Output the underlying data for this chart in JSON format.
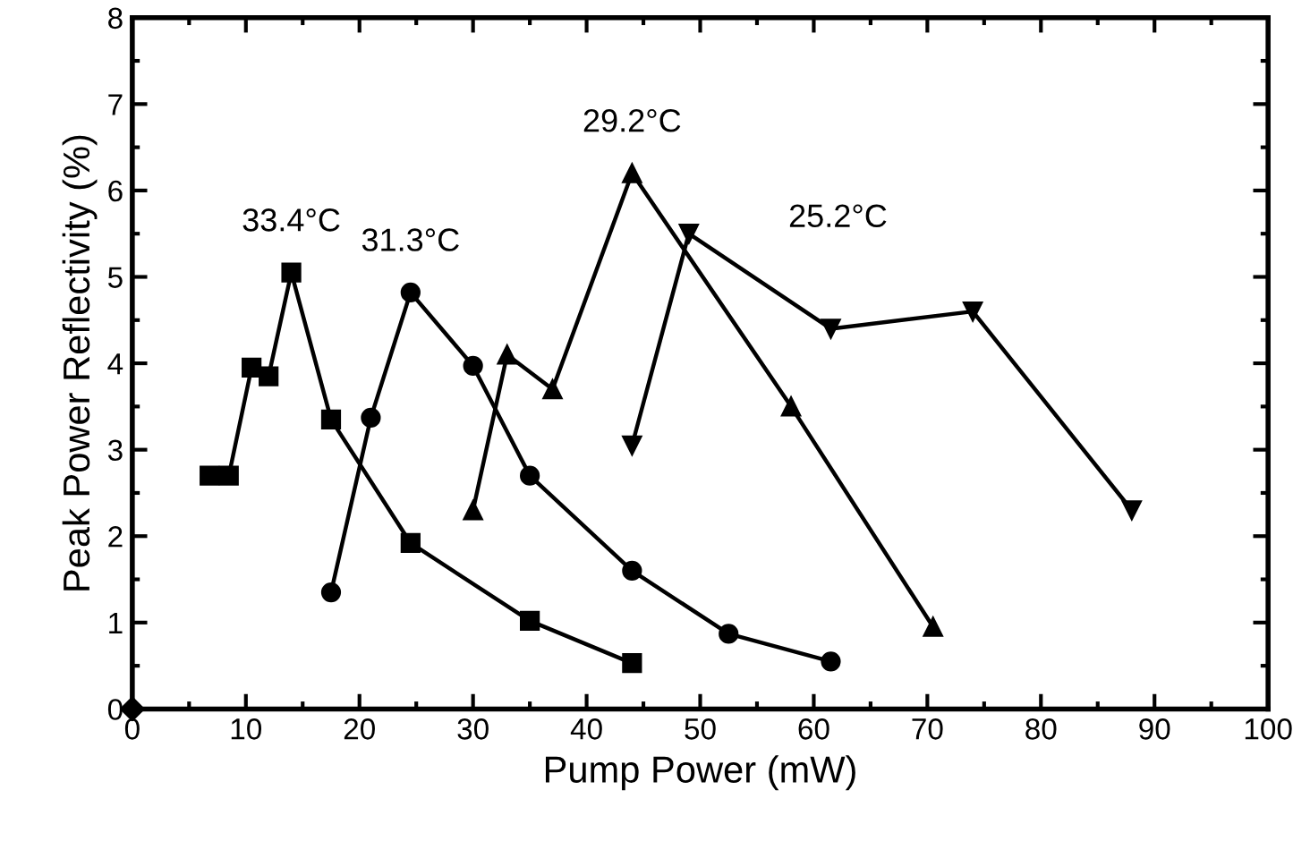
{
  "chart_data": {
    "type": "line",
    "xlabel": "Pump Power (mW)",
    "ylabel": "Peak Power Reflectivity (%)",
    "xlim": [
      0,
      100
    ],
    "xticks": [
      0,
      10,
      20,
      30,
      40,
      50,
      60,
      70,
      80,
      90,
      100
    ],
    "ylim": [
      0,
      8
    ],
    "yticks": [
      0,
      1,
      2,
      3,
      4,
      5,
      6,
      7,
      8
    ],
    "grid": false,
    "legend": false,
    "line_style": "solid",
    "series": [
      {
        "name": "33.4°C",
        "color": "#000000",
        "marker": "square",
        "x": [
          6.8,
          8.5,
          10.5,
          12,
          14,
          17.5,
          24.5,
          35,
          44
        ],
        "values": [
          2.7,
          2.7,
          3.95,
          3.85,
          5.05,
          3.35,
          1.92,
          1.02,
          0.53
        ]
      },
      {
        "name": "31.3°C",
        "color": "#000000",
        "marker": "circle",
        "x": [
          17.5,
          21,
          24.5,
          30,
          35,
          44,
          52.5,
          61.5
        ],
        "values": [
          1.35,
          3.37,
          4.82,
          3.97,
          2.7,
          1.6,
          0.87,
          0.55
        ]
      },
      {
        "name": "29.2°C",
        "color": "#000000",
        "marker": "triangle",
        "x": [
          30,
          33,
          37,
          44,
          58,
          70.5
        ],
        "values": [
          2.3,
          4.1,
          3.7,
          6.2,
          3.5,
          0.95
        ]
      },
      {
        "name": "25.2°C",
        "color": "#000000",
        "marker": "triangle_down",
        "x": [
          44,
          49,
          61.5,
          74,
          88
        ],
        "values": [
          3.05,
          5.5,
          4.4,
          4.6,
          2.3
        ]
      },
      {
        "type": "scatter",
        "color": "#000000",
        "marker": "diamond",
        "x": [
          0
        ],
        "values": [
          0
        ]
      }
    ]
  }
}
